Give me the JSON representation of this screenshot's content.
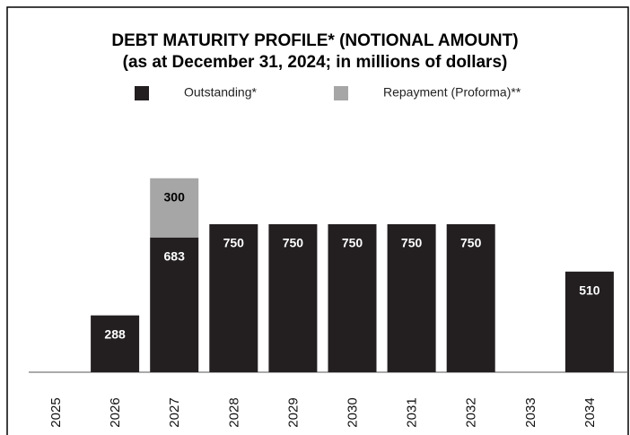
{
  "chart_data": {
    "type": "bar",
    "stacked": true,
    "title": "DEBT MATURITY PROFILE* (NOTIONAL AMOUNT)",
    "subtitle": "(as at December 31, 2024; in millions of dollars)",
    "categories": [
      "2025",
      "2026",
      "2027",
      "2028",
      "2029",
      "2030",
      "2031",
      "2032",
      "2033",
      "2034"
    ],
    "series": [
      {
        "name": "Outstanding*",
        "color": "#231f20",
        "values": [
          null,
          288,
          683,
          750,
          750,
          750,
          750,
          750,
          null,
          510
        ]
      },
      {
        "name": "Repayment (Proforma)**",
        "color": "#a6a6a6",
        "values": [
          null,
          null,
          300,
          null,
          null,
          null,
          null,
          null,
          null,
          null
        ]
      }
    ]
  }
}
